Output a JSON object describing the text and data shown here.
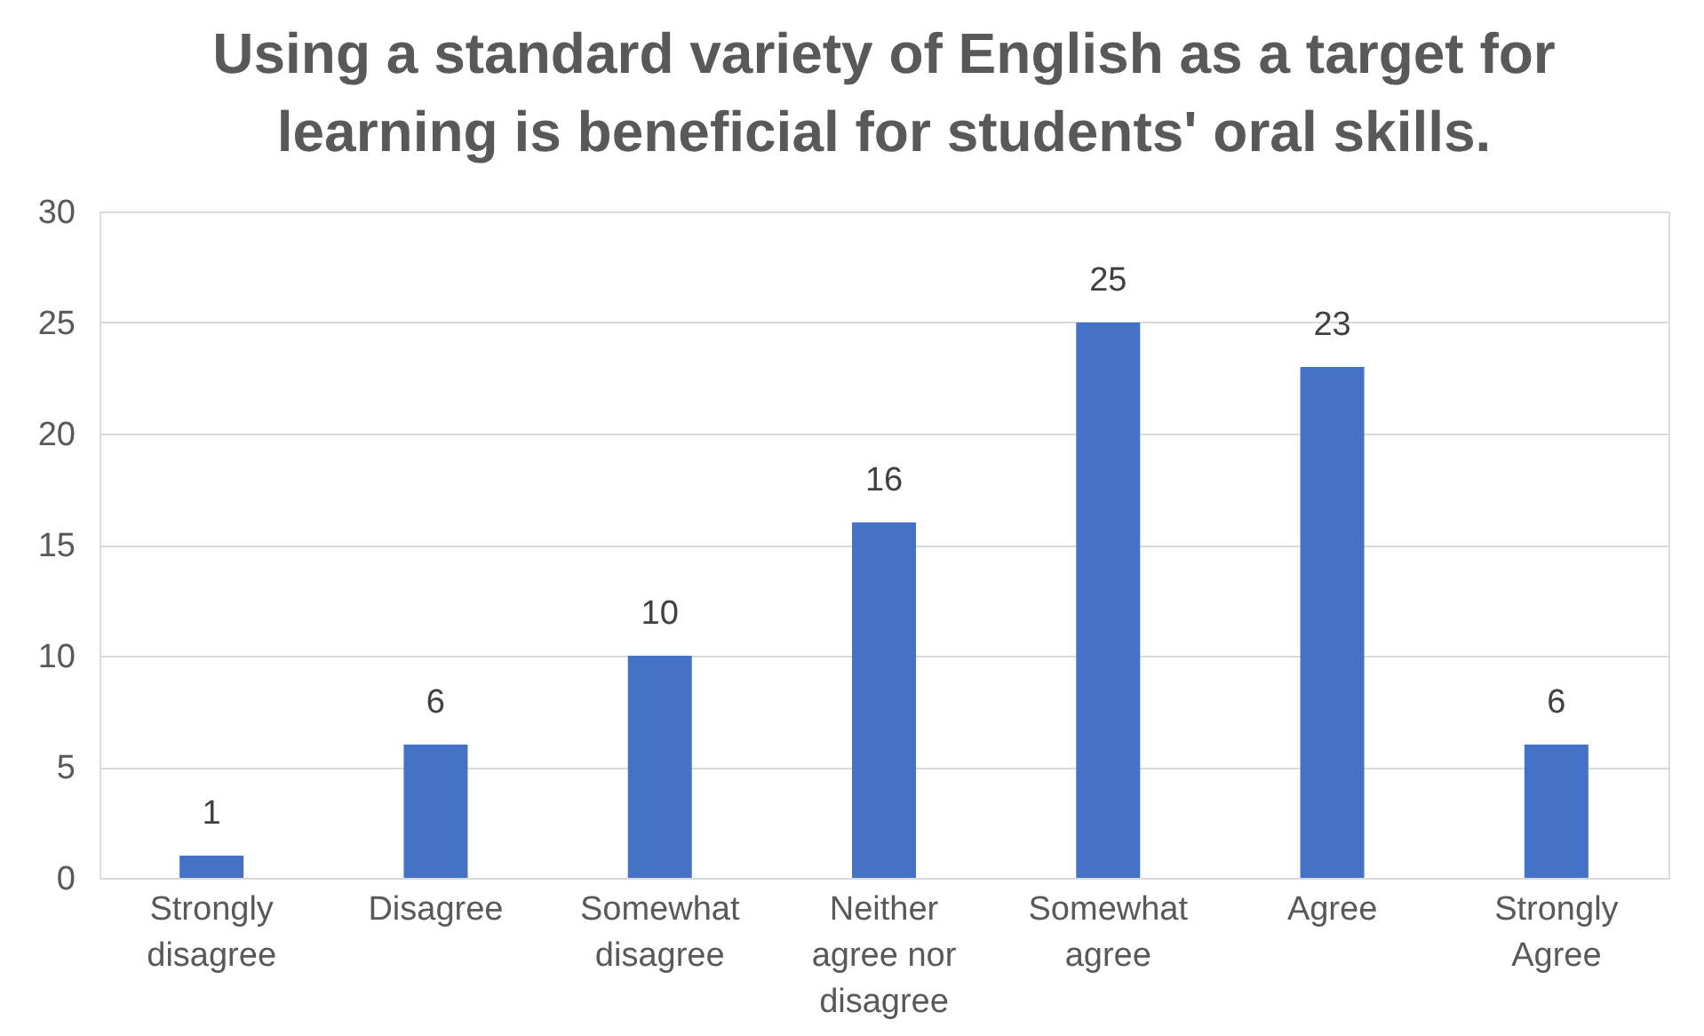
{
  "chart_data": {
    "type": "bar",
    "title": "Using a standard variety of English as a target for learning is beneficial for students' oral skills.",
    "categories": [
      "Strongly disagree",
      "Disagree",
      "Somewhat disagree",
      "Neither agree nor disagree",
      "Somewhat agree",
      "Agree",
      "Strongly Agree"
    ],
    "values": [
      1,
      6,
      10,
      16,
      25,
      23,
      6
    ],
    "color": "#4472c4",
    "ylim": [
      0,
      30
    ],
    "yticks": [
      0,
      5,
      10,
      15,
      20,
      25,
      30
    ],
    "grid": "y",
    "data_labels": true
  }
}
